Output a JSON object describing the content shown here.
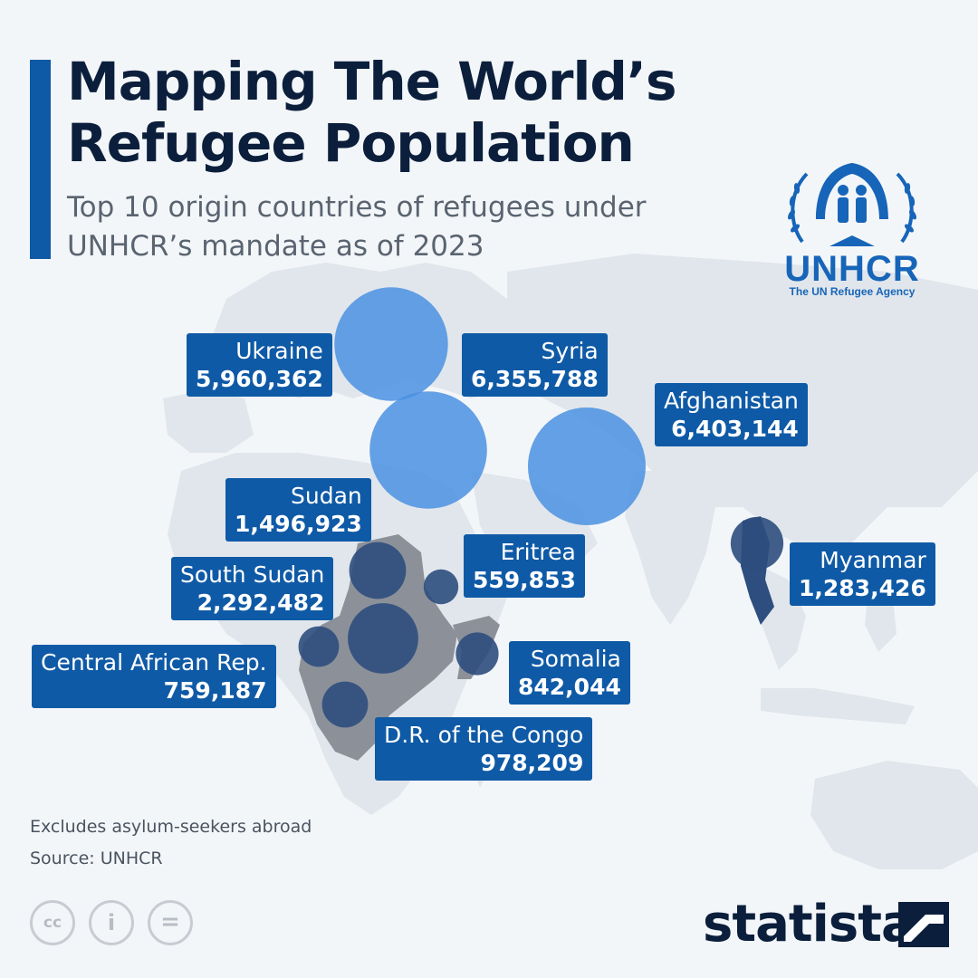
{
  "header": {
    "title": "Mapping The World’s Refugee Population",
    "subtitle": "Top 10 origin countries of refugees under UNHCR’s mandate as of 2023"
  },
  "logo": {
    "name": "UNHCR",
    "tagline": "The UN Refugee Agency",
    "icon": "unhcr-emblem-icon"
  },
  "map": {
    "type": "proportional-symbol",
    "region": "Europe, Middle East, Africa and Asia",
    "colors": {
      "bubble": "#4f95e8",
      "bubble_large": "#4a90e2",
      "country": "#2d4e7e",
      "land": "#dfe4ea",
      "highlight_land": "#8a9099",
      "label": "#0f5aa6"
    },
    "countries": [
      {
        "name": "Ukraine",
        "value": "5,960,362",
        "refugees": 5960362
      },
      {
        "name": "Syria",
        "value": "6,355,788",
        "refugees": 6355788
      },
      {
        "name": "Afghanistan",
        "value": "6,403,144",
        "refugees": 6403144
      },
      {
        "name": "Sudan",
        "value": "1,496,923",
        "refugees": 1496923
      },
      {
        "name": "Eritrea",
        "value": "559,853",
        "refugees": 559853
      },
      {
        "name": "Myanmar",
        "value": "1,283,426",
        "refugees": 1283426
      },
      {
        "name": "South Sudan",
        "value": "2,292,482",
        "refugees": 2292482
      },
      {
        "name": "Central African Rep.",
        "value": "759,187",
        "refugees": 759187
      },
      {
        "name": "Somalia",
        "value": "842,044",
        "refugees": 842044
      },
      {
        "name": "D.R. of the Congo",
        "value": "978,209",
        "refugees": 978209
      }
    ]
  },
  "footer": {
    "note": "Excludes asylum-seekers abroad",
    "source": "Source: UNHCR",
    "license_icons": [
      "cc-icon",
      "attribution-icon",
      "no-derivatives-icon"
    ],
    "license_glyphs": [
      "cc",
      "i",
      "="
    ],
    "brand": "statista",
    "brand_icon": "statista-logo-icon"
  }
}
